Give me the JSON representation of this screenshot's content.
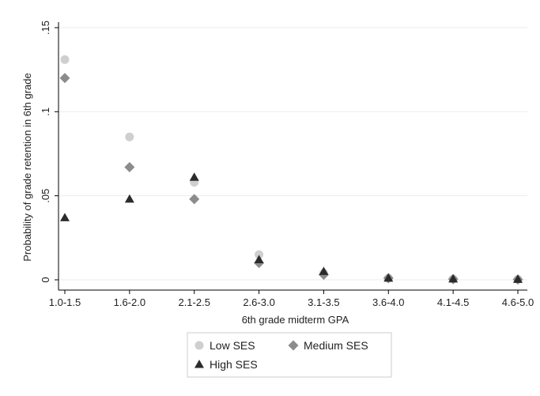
{
  "chart_data": {
    "type": "scatter",
    "xlabel": "6th grade midterm GPA",
    "ylabel": "Probability of grade retention in 6th grade",
    "categories": [
      "1.0-1.5",
      "1.6-2.0",
      "2.1-2.5",
      "2.6-3.0",
      "3.1-3.5",
      "3.6-4.0",
      "4.1-4.5",
      "4.6-5.0"
    ],
    "y_ticks": [
      {
        "value": 0,
        "label": "0"
      },
      {
        "value": 0.05,
        "label": ".05"
      },
      {
        "value": 0.1,
        "label": ".1"
      },
      {
        "value": 0.15,
        "label": ".15"
      }
    ],
    "ylim": [
      0,
      0.15
    ],
    "grid": true,
    "legend_position": "bottom",
    "series": [
      {
        "name": "Low SES",
        "marker": "circle",
        "color": "#cfcfcf",
        "values": [
          0.131,
          0.085,
          0.058,
          0.015,
          0.004,
          0.001,
          0.0005,
          0.0003
        ]
      },
      {
        "name": "Medium SES",
        "marker": "diamond",
        "color": "#8c8c8c",
        "values": [
          0.12,
          0.067,
          0.048,
          0.01,
          0.003,
          0.001,
          0.0004,
          0.0002
        ]
      },
      {
        "name": "High SES",
        "marker": "triangle",
        "color": "#2b2b2b",
        "values": [
          0.037,
          0.048,
          0.061,
          0.012,
          0.005,
          0.001,
          0.0005,
          0.0003
        ]
      }
    ]
  }
}
